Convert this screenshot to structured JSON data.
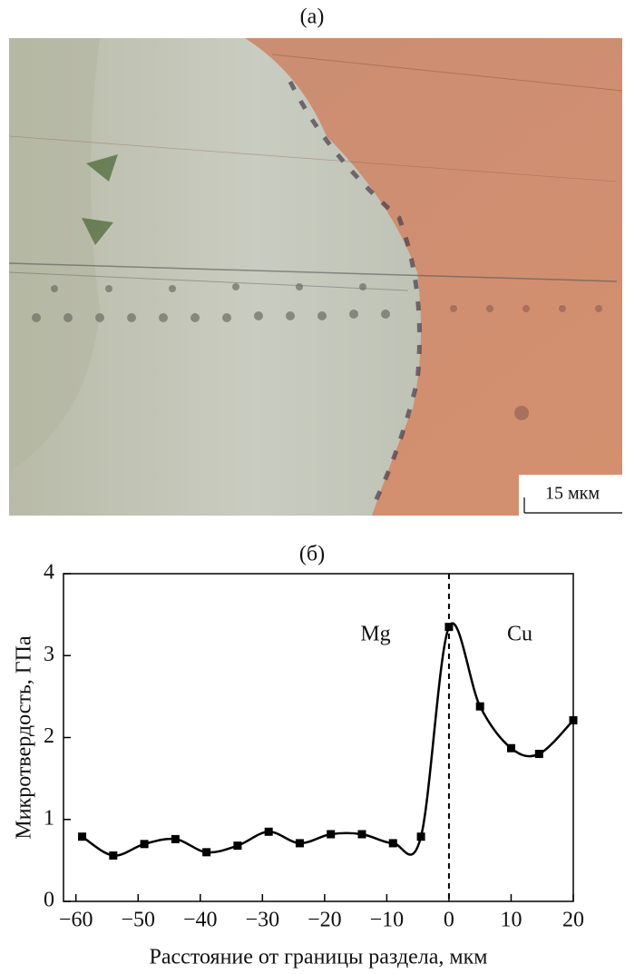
{
  "panel_a": {
    "label": "(a)",
    "scale_bar": "15 мкм"
  },
  "chart_data": {
    "type": "line",
    "label": "(б)",
    "x_label": "Расстояние от границы раздела, мкм",
    "y_label": "Микротвердость, ГПа",
    "annotations": [
      "Mg",
      "Cu"
    ],
    "x": [
      -59,
      -54,
      -49,
      -44,
      -39,
      -34,
      -29,
      -24,
      -19,
      -14,
      -9,
      -4.5,
      0,
      5,
      10,
      14.5,
      20
    ],
    "series": [
      {
        "color": "#000000",
        "values": [
          0.79,
          0.56,
          0.7,
          0.76,
          0.6,
          0.68,
          0.85,
          0.71,
          0.82,
          0.82,
          0.71,
          0.79,
          3.35,
          2.38,
          1.87,
          1.8,
          2.21
        ]
      }
    ],
    "xlim": [
      -62,
      20
    ],
    "ylim": [
      0,
      4
    ],
    "xticks": [
      {
        "value": -60,
        "label": "−60"
      },
      {
        "value": -50,
        "label": "−50"
      },
      {
        "value": -40,
        "label": "−40"
      },
      {
        "value": -30,
        "label": "−30"
      },
      {
        "value": -20,
        "label": "−20"
      },
      {
        "value": -10,
        "label": "−10"
      },
      0,
      10,
      20
    ],
    "yticks": [
      0,
      1,
      2,
      3,
      4
    ]
  }
}
